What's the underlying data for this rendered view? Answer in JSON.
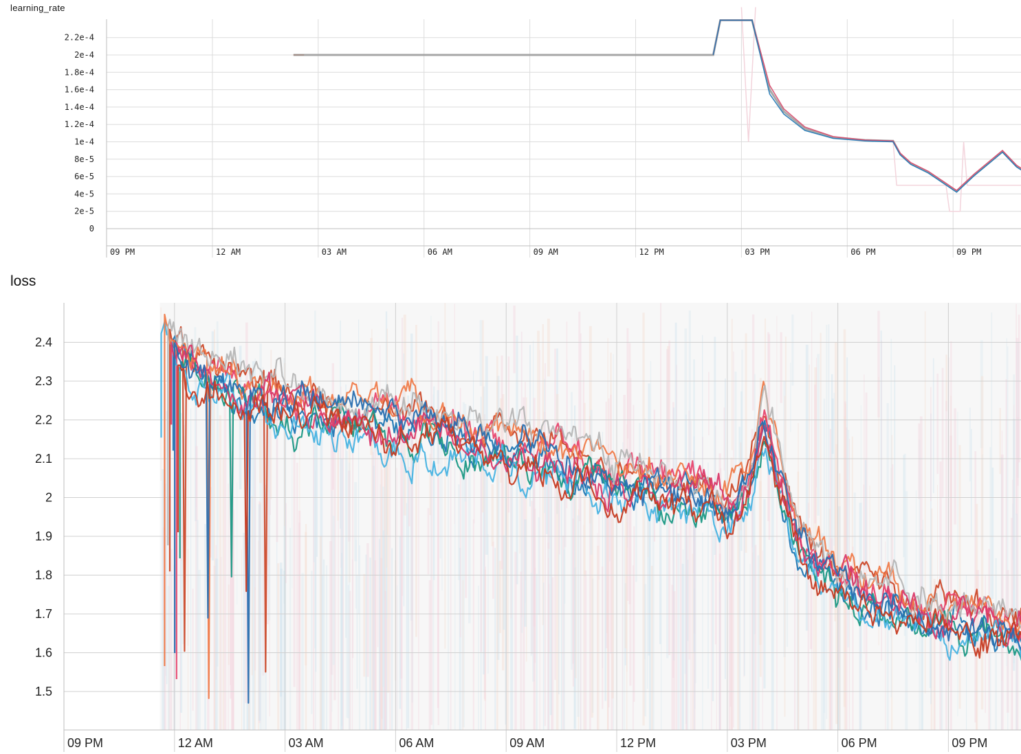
{
  "chart_data": [
    {
      "type": "line",
      "title": "learning_rate",
      "xlabel": "",
      "ylabel": "",
      "x_tick_labels": [
        "09 PM",
        "12 AM",
        "03 AM",
        "06 AM",
        "09 AM",
        "12 PM",
        "03 PM",
        "06 PM",
        "09 PM"
      ],
      "y_tick_labels": [
        "0",
        "2e-5",
        "4e-5",
        "6e-5",
        "8e-5",
        "1e-4",
        "1.2e-4",
        "1.4e-4",
        "1.6e-4",
        "1.8e-4",
        "2e-4",
        "2.2e-4"
      ],
      "ylim": [
        -2.5e-05,
        0.000242
      ],
      "grid": true,
      "x_unit": "hours since 09 PM",
      "series": [
        {
          "values": [
            [
              5.3,
              0.0002
            ],
            [
              5.6,
              0.0002
            ],
            [
              17.2,
              0.0002
            ],
            [
              17.4,
              0.00024
            ],
            [
              18.3,
              0.00024
            ],
            [
              18.8,
              0.00016
            ],
            [
              19.2,
              0.000135
            ],
            [
              19.8,
              0.000115
            ],
            [
              20.6,
              0.000105
            ],
            [
              21.5,
              0.000102
            ],
            [
              22.3,
              0.000101
            ],
            [
              22.5,
              8.6e-05
            ],
            [
              22.8,
              7.5e-05
            ],
            [
              23.3,
              6.5e-05
            ],
            [
              24.1,
              4.3e-05
            ],
            [
              24.6,
              6.2e-05
            ],
            [
              24.9,
              7.2e-05
            ],
            [
              25.4,
              8.9e-05
            ],
            [
              25.8,
              7.2e-05
            ],
            [
              26.3,
              5.9e-05
            ],
            [
              27.0,
              5.3e-05
            ],
            [
              28.0,
              5e-05
            ],
            [
              29.5,
              5e-05
            ],
            [
              29.9,
              5e-05
            ]
          ],
          "color": "#9a9a9a"
        },
        {
          "values": [
            [
              17.2,
              0.0002
            ],
            [
              17.4,
              0.00024
            ],
            [
              18.3,
              0.00024
            ],
            [
              18.8,
              0.000165
            ],
            [
              19.2,
              0.000138
            ],
            [
              19.8,
              0.000117
            ],
            [
              20.6,
              0.000106
            ],
            [
              21.5,
              0.000102
            ],
            [
              22.3,
              0.000101
            ],
            [
              22.5,
              8.7e-05
            ],
            [
              22.8,
              7.6e-05
            ],
            [
              23.3,
              6.6e-05
            ],
            [
              24.1,
              4.4e-05
            ],
            [
              24.6,
              6.3e-05
            ],
            [
              25.4,
              9e-05
            ],
            [
              25.8,
              7.3e-05
            ],
            [
              26.3,
              6e-05
            ],
            [
              27.0,
              5.4e-05
            ],
            [
              28.0,
              5e-05
            ],
            [
              29.5,
              5e-05
            ]
          ],
          "color": "#d84a6c"
        },
        {
          "values": [
            [
              17.2,
              0.0002
            ],
            [
              17.4,
              0.00024
            ],
            [
              18.3,
              0.00024
            ],
            [
              18.8,
              0.000155
            ],
            [
              19.2,
              0.000132
            ],
            [
              19.8,
              0.000113
            ],
            [
              20.6,
              0.000104
            ],
            [
              21.5,
              0.000101
            ],
            [
              22.3,
              0.0001
            ],
            [
              22.5,
              8.5e-05
            ],
            [
              22.8,
              7.4e-05
            ],
            [
              23.3,
              6.4e-05
            ],
            [
              24.1,
              4.2e-05
            ],
            [
              24.6,
              6.1e-05
            ],
            [
              25.4,
              8.8e-05
            ],
            [
              25.8,
              7.1e-05
            ],
            [
              26.3,
              5.8e-05
            ],
            [
              27.0,
              5.2e-05
            ],
            [
              28.0,
              5e-05
            ],
            [
              29.5,
              5e-05
            ]
          ],
          "color": "#1f77b4"
        }
      ]
    },
    {
      "type": "line",
      "title": "loss",
      "xlabel": "",
      "ylabel": "",
      "x_tick_labels": [
        "09 PM",
        "12 AM",
        "03 AM",
        "06 AM",
        "09 AM",
        "12 PM",
        "03 PM",
        "06 PM",
        "09 PM"
      ],
      "y_tick_labels": [
        "1.5",
        "1.6",
        "1.7",
        "1.8",
        "1.9",
        "2",
        "2.1",
        "2.2",
        "2.3",
        "2.4"
      ],
      "ylim": [
        1.4,
        2.5
      ],
      "grid": true,
      "x_unit": "hours since 09 PM",
      "trend": [
        [
          2.6,
          2.45
        ],
        [
          3.0,
          2.38
        ],
        [
          4.0,
          2.3
        ],
        [
          6.0,
          2.24
        ],
        [
          8.0,
          2.2
        ],
        [
          10.0,
          2.17
        ],
        [
          12.0,
          2.13
        ],
        [
          14.0,
          2.08
        ],
        [
          16.0,
          2.02
        ],
        [
          17.5,
          1.99
        ],
        [
          18.0,
          1.96
        ],
        [
          18.6,
          2.03
        ],
        [
          19.0,
          2.2
        ],
        [
          19.4,
          2.06
        ],
        [
          20.0,
          1.88
        ],
        [
          21.0,
          1.78
        ],
        [
          22.0,
          1.73
        ],
        [
          24.0,
          1.69
        ],
        [
          26.0,
          1.65
        ],
        [
          28.0,
          1.62
        ],
        [
          29.5,
          1.6
        ],
        [
          30.0,
          1.59
        ]
      ],
      "series": [
        {
          "color": "#cc4a2b",
          "offset": 0.03,
          "seed": 1
        },
        {
          "color": "#1f77b4",
          "offset": -0.01,
          "seed": 2
        },
        {
          "color": "#e8466e",
          "offset": 0.015,
          "seed": 3
        },
        {
          "color": "#1a9884",
          "offset": -0.025,
          "seed": 4
        },
        {
          "color": "#48b3e2",
          "offset": -0.04,
          "seed": 5
        },
        {
          "color": "#ef7b4a",
          "offset": 0.045,
          "seed": 6
        },
        {
          "color": "#b6b6b6",
          "offset": 0.05,
          "seed": 7
        },
        {
          "color": "#d9396a",
          "offset": -0.005,
          "seed": 8
        },
        {
          "color": "#2a6fb0",
          "offset": 0.0,
          "seed": 9
        },
        {
          "color": "#c63b22",
          "offset": -0.03,
          "seed": 10
        }
      ],
      "background_colors": [
        "#fbc4d4",
        "#b9dcf0",
        "#fcd2bf",
        "#cfe9f5",
        "#f6c8d7"
      ]
    }
  ]
}
